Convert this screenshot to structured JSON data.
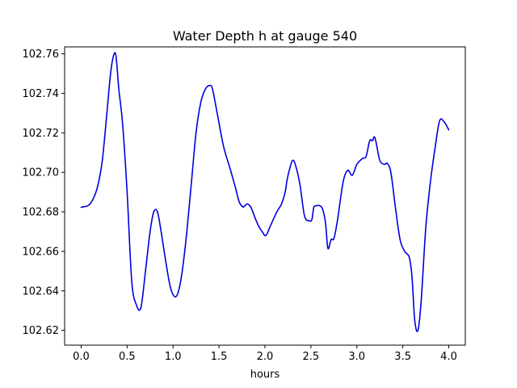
{
  "chart_data": {
    "type": "line",
    "title": "Water Depth h at gauge 540",
    "xlabel": "hours",
    "ylabel": "",
    "xlim": [
      -0.18,
      4.18
    ],
    "ylim": [
      102.6125,
      102.7635
    ],
    "xticks": [
      0.0,
      0.5,
      1.0,
      1.5,
      2.0,
      2.5,
      3.0,
      3.5,
      4.0
    ],
    "xtick_labels": [
      "0.0",
      "0.5",
      "1.0",
      "1.5",
      "2.0",
      "2.5",
      "3.0",
      "3.5",
      "4.0"
    ],
    "yticks": [
      102.62,
      102.64,
      102.66,
      102.68,
      102.7,
      102.72,
      102.74,
      102.76
    ],
    "ytick_labels": [
      "102.62",
      "102.64",
      "102.66",
      "102.68",
      "102.70",
      "102.72",
      "102.74",
      "102.76"
    ],
    "grid": false,
    "series": [
      {
        "color": "#0000dd",
        "x": [
          0.0,
          0.08,
          0.13,
          0.18,
          0.23,
          0.28,
          0.32,
          0.355,
          0.38,
          0.41,
          0.45,
          0.5,
          0.55,
          0.6,
          0.65,
          0.7,
          0.75,
          0.79,
          0.83,
          0.87,
          0.92,
          0.97,
          1.02,
          1.06,
          1.1,
          1.15,
          1.2,
          1.25,
          1.3,
          1.35,
          1.4,
          1.43,
          1.48,
          1.55,
          1.62,
          1.68,
          1.72,
          1.76,
          1.78,
          1.81,
          1.85,
          1.9,
          1.94,
          1.97,
          2.01,
          2.06,
          2.13,
          2.18,
          2.22,
          2.24,
          2.27,
          2.3,
          2.33,
          2.38,
          2.43,
          2.48,
          2.51,
          2.53,
          2.55,
          2.6,
          2.63,
          2.66,
          2.685,
          2.72,
          2.75,
          2.79,
          2.85,
          2.9,
          2.95,
          3.0,
          3.06,
          3.1,
          3.14,
          3.17,
          3.19,
          3.21,
          3.25,
          3.3,
          3.33,
          3.37,
          3.42,
          3.47,
          3.52,
          3.57,
          3.6,
          3.63,
          3.665,
          3.7,
          3.75,
          3.8,
          3.85,
          3.9,
          3.95,
          4.0
        ],
        "y": [
          102.6823,
          102.6833,
          102.6865,
          102.693,
          102.706,
          102.73,
          102.75,
          102.7595,
          102.7585,
          102.742,
          102.725,
          102.69,
          102.645,
          102.633,
          102.6315,
          102.65,
          102.67,
          102.68,
          102.68,
          102.67,
          102.655,
          102.642,
          102.637,
          102.64,
          102.65,
          102.67,
          102.695,
          102.72,
          102.735,
          102.742,
          102.744,
          102.742,
          102.73,
          102.713,
          102.702,
          102.692,
          102.685,
          102.6825,
          102.683,
          102.684,
          102.682,
          102.676,
          102.672,
          102.67,
          102.668,
          102.673,
          102.68,
          102.684,
          102.69,
          102.696,
          102.702,
          102.706,
          102.704,
          102.694,
          102.678,
          102.6755,
          102.676,
          102.682,
          102.683,
          102.683,
          102.681,
          102.674,
          102.6615,
          102.666,
          102.6665,
          102.676,
          102.695,
          102.701,
          102.6985,
          102.704,
          102.707,
          102.708,
          102.716,
          102.716,
          102.718,
          102.715,
          102.706,
          102.704,
          102.7045,
          102.7,
          102.682,
          102.666,
          102.66,
          102.657,
          102.647,
          102.625,
          102.62,
          102.635,
          102.672,
          102.695,
          102.712,
          102.726,
          102.7255,
          102.7215
        ]
      }
    ]
  }
}
